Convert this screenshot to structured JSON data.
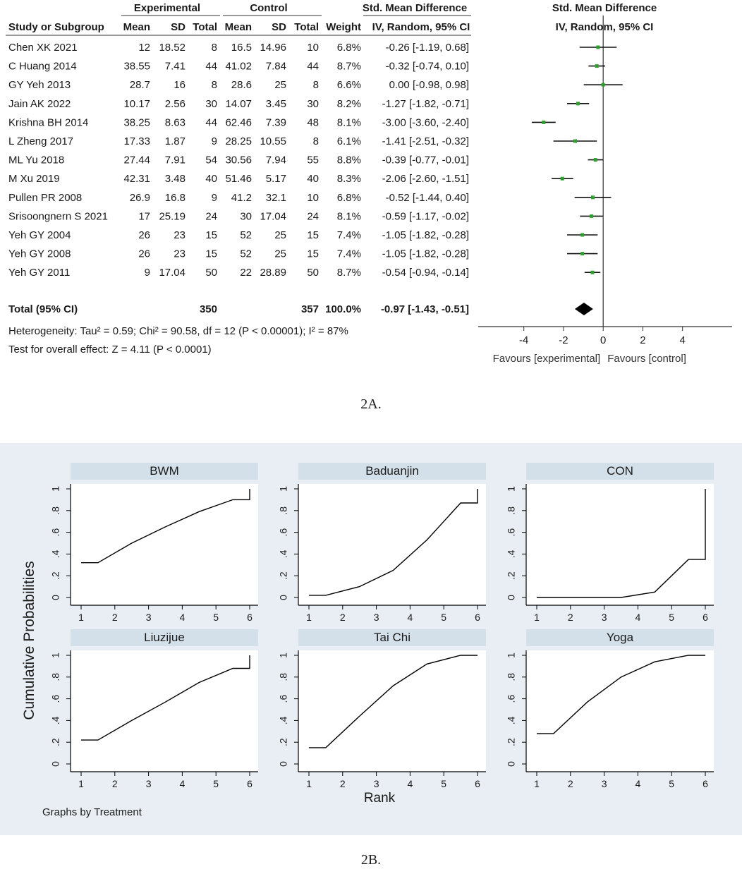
{
  "chart_data": [
    {
      "type": "forest",
      "group_headers": {
        "experimental": "Experimental",
        "control": "Control",
        "smd_col": "Std. Mean Difference",
        "smd_plot": "Std. Mean Difference"
      },
      "columns": [
        "Study or Subgroup",
        "Mean",
        "SD",
        "Total",
        "Mean",
        "SD",
        "Total",
        "Weight",
        "IV, Random, 95% CI"
      ],
      "plot_subheader": "IV, Random, 95% CI",
      "studies": [
        {
          "name": "Chen XK  2021",
          "e_mean": "12",
          "e_sd": "18.52",
          "e_total": "8",
          "c_mean": "16.5",
          "c_sd": "14.96",
          "c_total": "10",
          "weight": "6.8%",
          "ci_text": "-0.26 [-1.19, 0.68]",
          "est": -0.26,
          "lo": -1.19,
          "hi": 0.68
        },
        {
          "name": "C Huang 2014",
          "e_mean": "38.55",
          "e_sd": "7.41",
          "e_total": "44",
          "c_mean": "41.02",
          "c_sd": "7.84",
          "c_total": "44",
          "weight": "8.7%",
          "ci_text": "-0.32 [-0.74, 0.10]",
          "est": -0.32,
          "lo": -0.74,
          "hi": 0.1
        },
        {
          "name": "GY Yeh 2013",
          "e_mean": "28.7",
          "e_sd": "16",
          "e_total": "8",
          "c_mean": "28.6",
          "c_sd": "25",
          "c_total": "8",
          "weight": "6.6%",
          "ci_text": "0.00 [-0.98, 0.98]",
          "est": 0.0,
          "lo": -0.98,
          "hi": 0.98
        },
        {
          "name": "Jain AK 2022",
          "e_mean": "10.17",
          "e_sd": "2.56",
          "e_total": "30",
          "c_mean": "14.07",
          "c_sd": "3.45",
          "c_total": "30",
          "weight": "8.2%",
          "ci_text": "-1.27 [-1.82, -0.71]",
          "est": -1.27,
          "lo": -1.82,
          "hi": -0.71
        },
        {
          "name": "Krishna BH 2014",
          "e_mean": "38.25",
          "e_sd": "8.63",
          "e_total": "44",
          "c_mean": "62.46",
          "c_sd": "7.39",
          "c_total": "48",
          "weight": "8.1%",
          "ci_text": "-3.00 [-3.60, -2.40]",
          "est": -3.0,
          "lo": -3.6,
          "hi": -2.4
        },
        {
          "name": "L Zheng 2017",
          "e_mean": "17.33",
          "e_sd": "1.87",
          "e_total": "9",
          "c_mean": "28.25",
          "c_sd": "10.55",
          "c_total": "8",
          "weight": "6.1%",
          "ci_text": "-1.41 [-2.51, -0.32]",
          "est": -1.41,
          "lo": -2.51,
          "hi": -0.32
        },
        {
          "name": "ML Yu 2018",
          "e_mean": "27.44",
          "e_sd": "7.91",
          "e_total": "54",
          "c_mean": "30.56",
          "c_sd": "7.94",
          "c_total": "55",
          "weight": "8.8%",
          "ci_text": "-0.39 [-0.77, -0.01]",
          "est": -0.39,
          "lo": -0.77,
          "hi": -0.01
        },
        {
          "name": "M Xu 2019",
          "e_mean": "42.31",
          "e_sd": "3.48",
          "e_total": "40",
          "c_mean": "51.46",
          "c_sd": "5.17",
          "c_total": "40",
          "weight": "8.3%",
          "ci_text": "-2.06 [-2.60, -1.51]",
          "est": -2.06,
          "lo": -2.6,
          "hi": -1.51
        },
        {
          "name": "Pullen PR 2008",
          "e_mean": "26.9",
          "e_sd": "16.8",
          "e_total": "9",
          "c_mean": "41.2",
          "c_sd": "32.1",
          "c_total": "10",
          "weight": "6.8%",
          "ci_text": "-0.52 [-1.44, 0.40]",
          "est": -0.52,
          "lo": -1.44,
          "hi": 0.4
        },
        {
          "name": "Srisoongnern S 2021",
          "e_mean": "17",
          "e_sd": "25.19",
          "e_total": "24",
          "c_mean": "30",
          "c_sd": "17.04",
          "c_total": "24",
          "weight": "8.1%",
          "ci_text": "-0.59 [-1.17, -0.02]",
          "est": -0.59,
          "lo": -1.17,
          "hi": -0.02
        },
        {
          "name": "Yeh GY 2004",
          "e_mean": "26",
          "e_sd": "23",
          "e_total": "15",
          "c_mean": "52",
          "c_sd": "25",
          "c_total": "15",
          "weight": "7.4%",
          "ci_text": "-1.05 [-1.82, -0.28]",
          "est": -1.05,
          "lo": -1.82,
          "hi": -0.28
        },
        {
          "name": "Yeh GY 2008",
          "e_mean": "26",
          "e_sd": "23",
          "e_total": "15",
          "c_mean": "52",
          "c_sd": "25",
          "c_total": "15",
          "weight": "7.4%",
          "ci_text": "-1.05 [-1.82, -0.28]",
          "est": -1.05,
          "lo": -1.82,
          "hi": -0.28
        },
        {
          "name": "Yeh GY 2011",
          "e_mean": "9",
          "e_sd": "17.04",
          "e_total": "50",
          "c_mean": "22",
          "c_sd": "28.89",
          "c_total": "50",
          "weight": "8.7%",
          "ci_text": "-0.54 [-0.94, -0.14]",
          "est": -0.54,
          "lo": -0.94,
          "hi": -0.14
        }
      ],
      "total": {
        "name": "Total (95% CI)",
        "e_total": "350",
        "c_total": "357",
        "weight": "100.0%",
        "ci_text": "-0.97 [-1.43, -0.51]",
        "est": -0.97,
        "lo": -1.43,
        "hi": -0.51
      },
      "heterogeneity": "Heterogeneity: Tau² = 0.59; Chi² = 90.58, df = 12 (P < 0.00001); I² = 87%",
      "overall_effect": "Test for overall effect: Z = 4.11 (P < 0.0001)",
      "x_ticks": [
        -4,
        -2,
        0,
        2,
        4
      ],
      "x_tick_labels": [
        "-4",
        "-2",
        "0",
        "2",
        "4"
      ],
      "xlim": [
        -6.3,
        6.5
      ],
      "favours_left": "Favours [experimental]",
      "favours_right": "Favours [control]",
      "marker_color": "#2ea02e",
      "caption": "2A."
    },
    {
      "type": "line",
      "ylabel": "Cumulative Probabilities",
      "xlabel": "Rank",
      "footer": "Graphs by Treatment",
      "x_ticks": [
        "1",
        "2",
        "3",
        "4",
        "5",
        "6"
      ],
      "y_ticks": [
        0,
        0.2,
        0.4,
        0.6,
        0.8,
        1
      ],
      "y_tick_labels": [
        "0",
        ".2",
        ".4",
        ".6",
        ".8",
        "1"
      ],
      "xlim": [
        1,
        6
      ],
      "ylim": [
        0,
        1
      ],
      "panels": [
        {
          "title": "BWM",
          "x": [
            1,
            1.5,
            2.5,
            3.5,
            4.5,
            5.5,
            6,
            6
          ],
          "y": [
            0.32,
            0.32,
            0.5,
            0.65,
            0.79,
            0.9,
            0.9,
            1
          ]
        },
        {
          "title": "Baduanjin",
          "x": [
            1,
            1.5,
            2.5,
            3.5,
            4.5,
            5.5,
            6,
            6
          ],
          "y": [
            0.02,
            0.02,
            0.1,
            0.25,
            0.53,
            0.87,
            0.87,
            1
          ]
        },
        {
          "title": "CON",
          "x": [
            1,
            1.5,
            2.5,
            3.5,
            4.5,
            5.5,
            6,
            6
          ],
          "y": [
            0.0,
            0.0,
            0.0,
            0.0,
            0.05,
            0.35,
            0.35,
            1
          ]
        },
        {
          "title": "Liuzijue",
          "x": [
            1,
            1.5,
            2.5,
            3.5,
            4.5,
            5.5,
            6,
            6
          ],
          "y": [
            0.22,
            0.22,
            0.4,
            0.57,
            0.75,
            0.88,
            0.88,
            1
          ]
        },
        {
          "title": "Tai Chi",
          "x": [
            1,
            1.5,
            2.5,
            3.5,
            4.5,
            5.5,
            6
          ],
          "y": [
            0.15,
            0.15,
            0.44,
            0.72,
            0.92,
            1,
            1
          ]
        },
        {
          "title": "Yoga",
          "x": [
            1,
            1.5,
            2.5,
            3.5,
            4.5,
            5.5,
            6
          ],
          "y": [
            0.28,
            0.28,
            0.57,
            0.8,
            0.94,
            1,
            1
          ]
        }
      ],
      "panel_header_color": "#d3e0ea",
      "background_color": "#e8eef3",
      "caption": "2B."
    }
  ]
}
